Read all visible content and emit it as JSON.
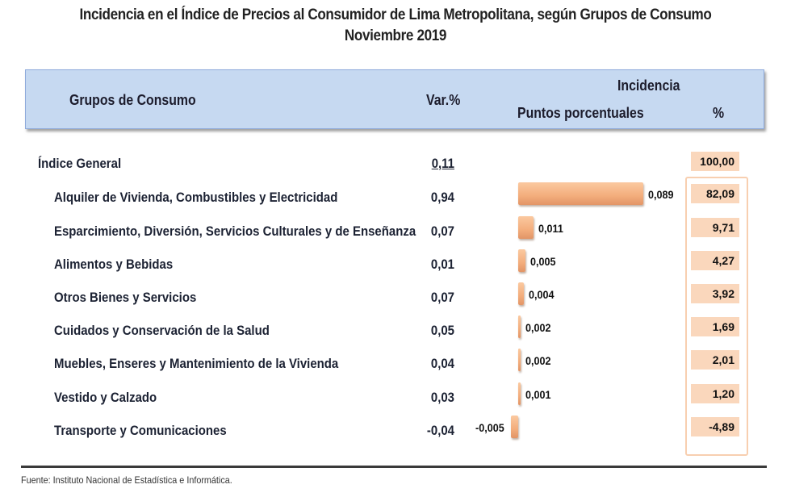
{
  "title": {
    "line1": "Incidencia en el Índice de Precios al Consumidor de  Lima Metropolitana, según Grupos de Consumo",
    "line2": "Noviembre 2019"
  },
  "header": {
    "groups": "Grupos de Consumo",
    "var": "Var.%",
    "incidencia": "Incidencia",
    "puntos": "Puntos porcentuales",
    "pct": "%"
  },
  "general": {
    "label": "Índice General",
    "var": "0,11",
    "pct": "100,00"
  },
  "chart_data": {
    "type": "bar",
    "orientation": "horizontal",
    "title": "Incidencia en el Índice de Precios al Consumidor de Lima Metropolitana, según Grupos de Consumo - Noviembre 2019",
    "xlabel": "Puntos porcentuales",
    "ylabel": "Grupos de Consumo",
    "categories": [
      "Alquiler de Vivienda, Combustibles y Electricidad",
      "Esparcimiento, Diversión, Servicios Culturales y de Enseñanza",
      "Alimentos y Bebidas",
      "Otros  Bienes y Servicios",
      "Cuidados y Conservación de la Salud",
      "Muebles, Enseres y Mantenimiento de la Vivienda",
      "Vestido y Calzado",
      "Transporte y Comunicaciones"
    ],
    "var_pct": [
      "0,94",
      "0,07",
      "0,01",
      "0,07",
      "0,05",
      "0,04",
      "0,03",
      "-0,04"
    ],
    "values": [
      0.089,
      0.011,
      0.005,
      0.004,
      0.002,
      0.002,
      0.001,
      -0.005
    ],
    "value_labels": [
      "0,089",
      "0,011",
      "0,005",
      "0,004",
      "0,002",
      "0,002",
      "0,001",
      "-0,005"
    ],
    "incidencia_pct": [
      "82,09",
      "9,71",
      "4,27",
      "3,92",
      "1,69",
      "2,01",
      "1,20",
      "-4,89"
    ],
    "bar_color": "#f4b183",
    "grid": false,
    "legend": "none"
  },
  "footer": {
    "source": "Fuente: Instituto Nacional de Estadística e Informática."
  }
}
